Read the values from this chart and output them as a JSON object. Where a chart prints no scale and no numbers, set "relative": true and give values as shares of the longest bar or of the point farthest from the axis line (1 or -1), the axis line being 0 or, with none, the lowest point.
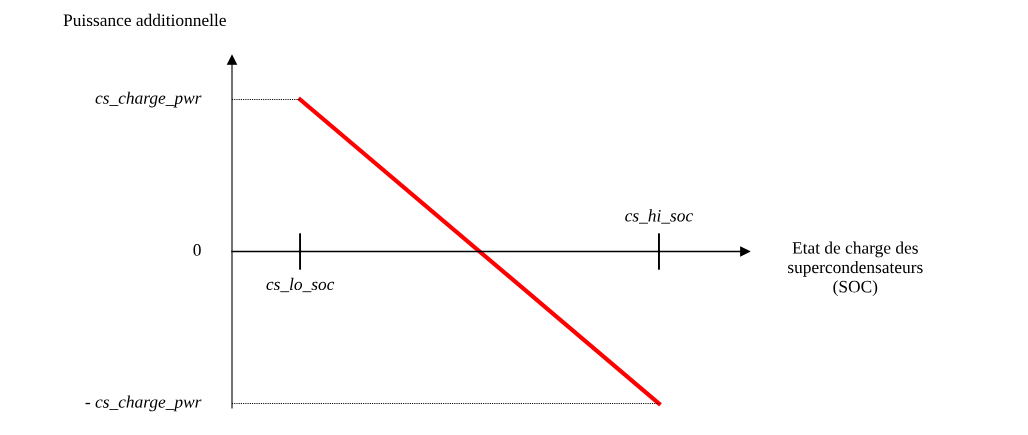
{
  "chart_data": {
    "type": "line",
    "xlabel": "Etat de charge des\nsupercondensateurs\n(SOC)",
    "ylabel": "Puissance additionnelle",
    "categories": [
      "cs_lo_soc",
      "cs_hi_soc"
    ],
    "series": [
      {
        "color": "#ff0000",
        "values": [
          1,
          -1
        ]
      }
    ],
    "relative": true,
    "ref_lines": [
      {
        "axis": "y",
        "value": 1,
        "label": "cs_charge_pwr",
        "line_style": "dotted"
      },
      {
        "axis": "y",
        "value": 0,
        "label": "0"
      },
      {
        "axis": "y",
        "value": -1,
        "label": "- cs_charge_pwr",
        "line_style": "dotted"
      }
    ],
    "legend": false,
    "marker": "none",
    "line_style": "solid"
  }
}
